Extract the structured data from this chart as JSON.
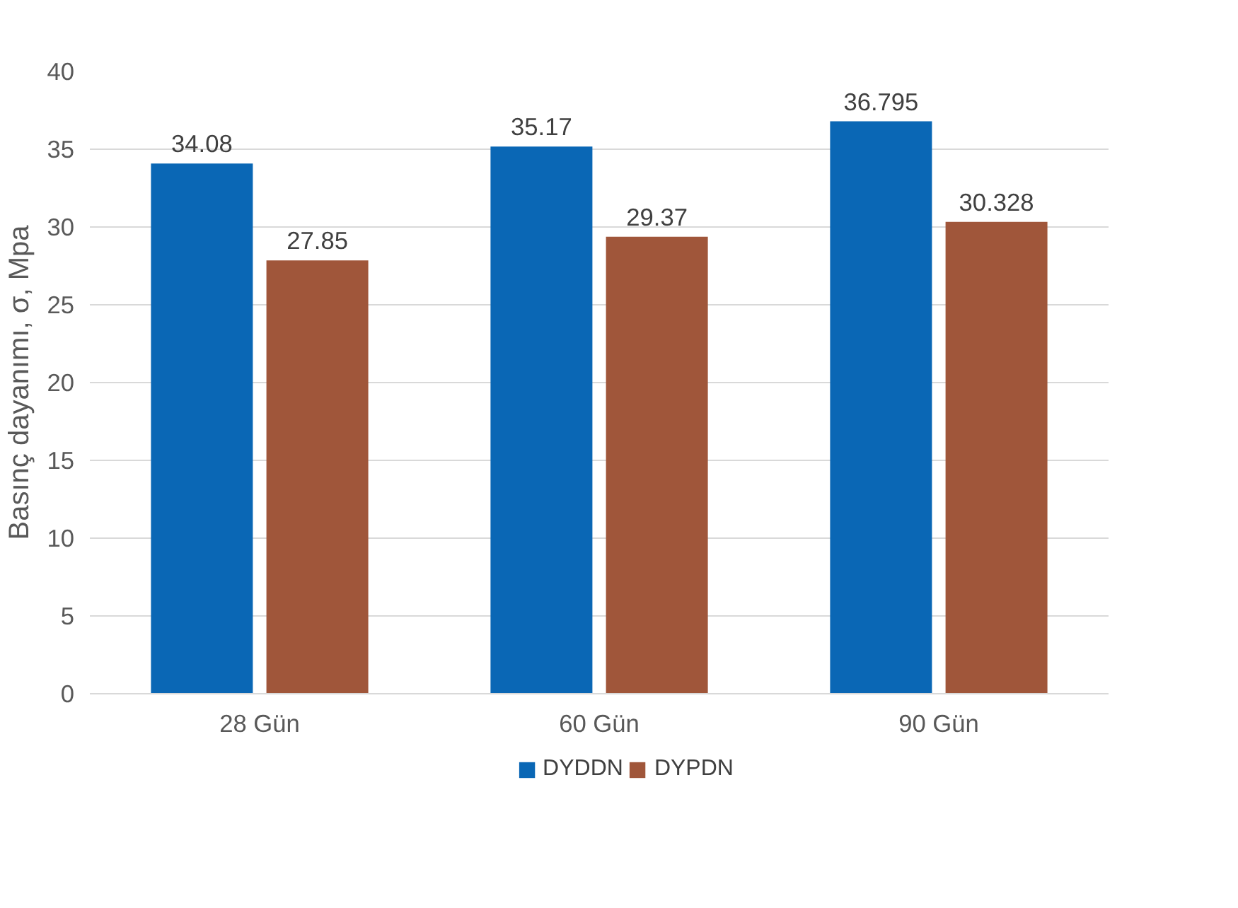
{
  "chart_data": {
    "type": "bar",
    "ylabel": "Basınç dayanımı, σ, Mpa",
    "categories": [
      "28 Gün",
      "60 Gün",
      "90 Gün"
    ],
    "series": [
      {
        "name": "DYDDN",
        "color": "#0a67b5",
        "values": [
          34.08,
          35.17,
          36.795
        ]
      },
      {
        "name": "DYPDN",
        "color": "#a0563a",
        "values": [
          27.85,
          29.37,
          30.328
        ]
      }
    ],
    "ylim": [
      0,
      40
    ],
    "yticks": [
      0,
      5,
      10,
      15,
      20,
      25,
      30,
      35,
      40
    ],
    "grid": "y",
    "legend": "bottom",
    "data_labels": true
  }
}
